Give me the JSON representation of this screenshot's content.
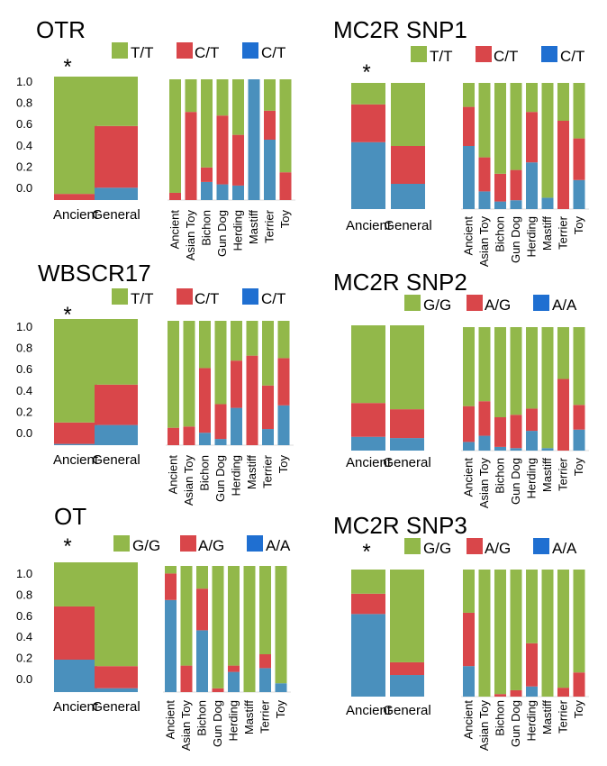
{
  "colors": {
    "tt_gg": "#92b84a",
    "ct_ag": "#d9464a",
    "cc_aa": "#4a90bd",
    "legend_blue": "#1f6fd1"
  },
  "chart_data": [
    {
      "type": "bar",
      "title": "OTR",
      "legend": [
        "T/T",
        "C/T",
        "C/T"
      ],
      "yticks": [
        "1.0",
        "0.8",
        "0.6",
        "0.4",
        "0.2",
        "0.0"
      ],
      "ylim": [
        0,
        1
      ],
      "significant_marker": "*",
      "left": {
        "categories": [
          "Ancient",
          "General"
        ],
        "series": [
          {
            "name": "C/T",
            "values": [
              0.0,
              0.1
            ]
          },
          {
            "name": "C/T",
            "values": [
              0.05,
              0.5
            ]
          },
          {
            "name": "T/T",
            "values": [
              0.95,
              0.4
            ]
          }
        ]
      },
      "right": {
        "categories": [
          "Ancient",
          "Asian Toy",
          "Bichon",
          "Gun Dog",
          "Herding",
          "Mastiff",
          "Terrier",
          "Toy"
        ],
        "series": [
          {
            "name": "C/T",
            "values": [
              0.0,
              0.0,
              0.15,
              0.13,
              0.12,
              1.0,
              0.5,
              0.0
            ]
          },
          {
            "name": "C/T",
            "values": [
              0.06,
              0.73,
              0.12,
              0.57,
              0.42,
              0.0,
              0.24,
              0.23
            ]
          },
          {
            "name": "T/T",
            "values": [
              0.94,
              0.27,
              0.73,
              0.3,
              0.46,
              0.0,
              0.26,
              0.77
            ]
          }
        ]
      }
    },
    {
      "type": "bar",
      "title": "MC2R SNP1",
      "legend": [
        "T/T",
        "C/T",
        "C/T"
      ],
      "significant_marker": "*",
      "left": {
        "categories": [
          "Ancient",
          "General"
        ],
        "series": [
          {
            "name": "C/T",
            "values": [
              0.53,
              0.2
            ]
          },
          {
            "name": "C/T",
            "values": [
              0.3,
              0.3
            ]
          },
          {
            "name": "T/T",
            "values": [
              0.17,
              0.5
            ]
          }
        ]
      },
      "right": {
        "categories": [
          "Ancient",
          "Asian Toy",
          "Bichon",
          "Gun Dog",
          "Herding",
          "Mastiff",
          "Terrier",
          "Toy"
        ],
        "series": [
          {
            "name": "C/T",
            "values": [
              0.5,
              0.14,
              0.06,
              0.07,
              0.37,
              0.09,
              0.0,
              0.23
            ]
          },
          {
            "name": "C/T",
            "values": [
              0.31,
              0.27,
              0.22,
              0.24,
              0.4,
              0.0,
              0.7,
              0.33
            ]
          },
          {
            "name": "T/T",
            "values": [
              0.19,
              0.59,
              0.72,
              0.69,
              0.23,
              0.91,
              0.3,
              0.44
            ]
          }
        ]
      }
    },
    {
      "type": "bar",
      "title": "WBSCR17",
      "legend": [
        "T/T",
        "C/T",
        "C/T"
      ],
      "yticks": [
        "1.0",
        "0.8",
        "0.6",
        "0.4",
        "0.2",
        "0.0"
      ],
      "ylim": [
        0,
        1
      ],
      "significant_marker": "*",
      "left": {
        "categories": [
          "Ancient",
          "General"
        ],
        "series": [
          {
            "name": "C/T",
            "values": [
              0.01,
              0.16
            ]
          },
          {
            "name": "C/T",
            "values": [
              0.17,
              0.32
            ]
          },
          {
            "name": "T/T",
            "values": [
              0.82,
              0.52
            ]
          }
        ]
      },
      "right": {
        "categories": [
          "Ancient",
          "Asian Toy",
          "Bichon",
          "Gun Dog",
          "Herding",
          "Mastiff",
          "Terrier",
          "Toy"
        ],
        "series": [
          {
            "name": "C/T",
            "values": [
              0.0,
              0.0,
              0.1,
              0.05,
              0.3,
              0.0,
              0.13,
              0.32
            ]
          },
          {
            "name": "C/T",
            "values": [
              0.14,
              0.15,
              0.52,
              0.28,
              0.38,
              0.72,
              0.35,
              0.38
            ]
          },
          {
            "name": "T/T",
            "values": [
              0.86,
              0.85,
              0.38,
              0.67,
              0.32,
              0.28,
              0.52,
              0.3
            ]
          }
        ]
      }
    },
    {
      "type": "bar",
      "title": "MC2R SNP2",
      "legend": [
        "G/G",
        "A/G",
        "A/A"
      ],
      "left": {
        "categories": [
          "Ancient",
          "General"
        ],
        "series": [
          {
            "name": "A/A",
            "values": [
              0.11,
              0.1
            ]
          },
          {
            "name": "A/G",
            "values": [
              0.27,
              0.23
            ]
          },
          {
            "name": "G/G",
            "values": [
              0.62,
              0.67
            ]
          }
        ]
      },
      "right": {
        "categories": [
          "Ancient",
          "Asian Toy",
          "Bichon",
          "Gun Dog",
          "Herding",
          "Mastiff",
          "Terrier",
          "Toy"
        ],
        "series": [
          {
            "name": "A/A",
            "values": [
              0.07,
              0.12,
              0.03,
              0.02,
              0.16,
              0.02,
              0.0,
              0.17
            ]
          },
          {
            "name": "A/G",
            "values": [
              0.29,
              0.28,
              0.24,
              0.27,
              0.18,
              0.0,
              0.58,
              0.2
            ]
          },
          {
            "name": "G/G",
            "values": [
              0.64,
              0.6,
              0.73,
              0.71,
              0.66,
              0.98,
              0.42,
              0.63
            ]
          }
        ]
      }
    },
    {
      "type": "bar",
      "title": "OT",
      "legend": [
        "G/G",
        "A/G",
        "A/A"
      ],
      "yticks": [
        "1.0",
        "0.8",
        "0.6",
        "0.4",
        "0.2",
        "0.0"
      ],
      "ylim": [
        0,
        1
      ],
      "significant_marker": "*",
      "left": {
        "categories": [
          "Ancient",
          "General"
        ],
        "series": [
          {
            "name": "A/A",
            "values": [
              0.25,
              0.03
            ]
          },
          {
            "name": "A/G",
            "values": [
              0.41,
              0.17
            ]
          },
          {
            "name": "G/G",
            "values": [
              0.34,
              0.8
            ]
          }
        ]
      },
      "right": {
        "categories": [
          "Ancient",
          "Asian Toy",
          "Bichon",
          "Gun Dog",
          "Herding",
          "Mastiff",
          "Terrier",
          "Toy"
        ],
        "series": [
          {
            "name": "A/A",
            "values": [
              0.73,
              0.0,
              0.49,
              0.0,
              0.16,
              0.0,
              0.19,
              0.07
            ]
          },
          {
            "name": "A/G",
            "values": [
              0.21,
              0.21,
              0.33,
              0.03,
              0.05,
              0.0,
              0.11,
              0.0
            ]
          },
          {
            "name": "G/G",
            "values": [
              0.06,
              0.79,
              0.18,
              0.97,
              0.79,
              1.0,
              0.7,
              0.93
            ]
          }
        ]
      }
    },
    {
      "type": "bar",
      "title": "MC2R SNP3",
      "legend": [
        "G/G",
        "A/G",
        "A/A"
      ],
      "significant_marker": "*",
      "left": {
        "categories": [
          "Ancient",
          "General"
        ],
        "series": [
          {
            "name": "A/A",
            "values": [
              0.65,
              0.17
            ]
          },
          {
            "name": "A/G",
            "values": [
              0.16,
              0.1
            ]
          },
          {
            "name": "G/G",
            "values": [
              0.19,
              0.73
            ]
          }
        ]
      },
      "right": {
        "categories": [
          "Ancient",
          "Asian Toy",
          "Bichon",
          "Gun Dog",
          "Herding",
          "Mastiff",
          "Terrier",
          "Toy"
        ],
        "series": [
          {
            "name": "A/A",
            "values": [
              0.24,
              0.0,
              0.0,
              0.0,
              0.08,
              0.0,
              0.0,
              0.0
            ]
          },
          {
            "name": "A/G",
            "values": [
              0.42,
              0.0,
              0.02,
              0.05,
              0.34,
              0.0,
              0.07,
              0.19
            ]
          },
          {
            "name": "G/G",
            "values": [
              0.34,
              1.0,
              0.98,
              0.95,
              0.58,
              1.0,
              0.93,
              0.81
            ]
          }
        ]
      }
    }
  ]
}
